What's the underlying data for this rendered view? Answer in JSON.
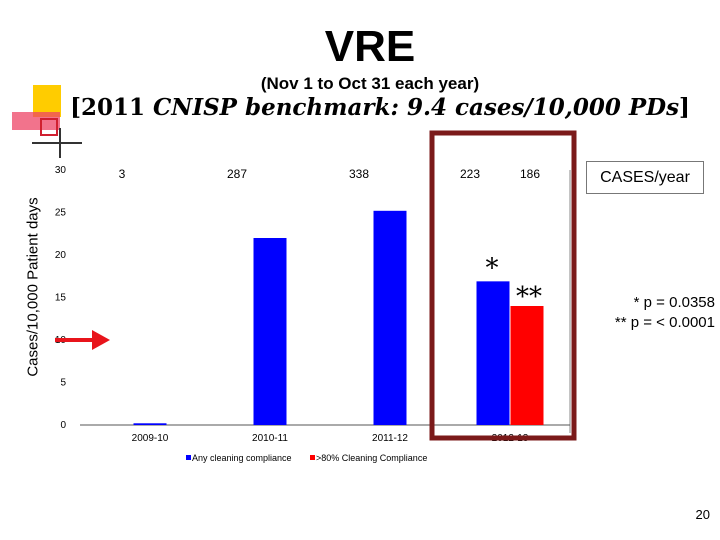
{
  "slide": {
    "title": "VRE",
    "subtitle": "(Nov 1 to Oct 31 each year)",
    "benchmark_prefix": "[2011 ",
    "benchmark_italic": "CNISP benchmark: 9.4 cases/10,000 PDs",
    "benchmark_suffix": "]",
    "cases_label": "CASES/year",
    "pvalue_1": "* p = 0.0358",
    "pvalue_2": "** p = < 0.0001",
    "page_number": "20",
    "colors": {
      "accent_yellow": "#ffcc00",
      "accent_red": "#ff0000",
      "highlight_box": "#7b1a1a",
      "arrow": "#e8141b"
    }
  },
  "chart_data": {
    "type": "bar",
    "ylabel": "Cases/10,000 Patient days",
    "ylim": [
      0,
      30
    ],
    "yticks": [
      0,
      5,
      10,
      15,
      20,
      25,
      30
    ],
    "categories": [
      "2009-10",
      "2010-11",
      "2011-12",
      "2012-13"
    ],
    "series": [
      {
        "name": "Any cleaning compliance",
        "color": "#0000ff",
        "values": [
          0.2,
          22,
          25.2,
          16.9
        ]
      },
      {
        "name": ">80% Cleaning Compliance",
        "color": "#ff0000",
        "values": [
          null,
          null,
          null,
          14
        ]
      }
    ],
    "case_counts": [
      "3",
      "287",
      "338",
      "223",
      "186"
    ],
    "annotations": [
      "*",
      "**"
    ],
    "legend_position": "bottom"
  }
}
